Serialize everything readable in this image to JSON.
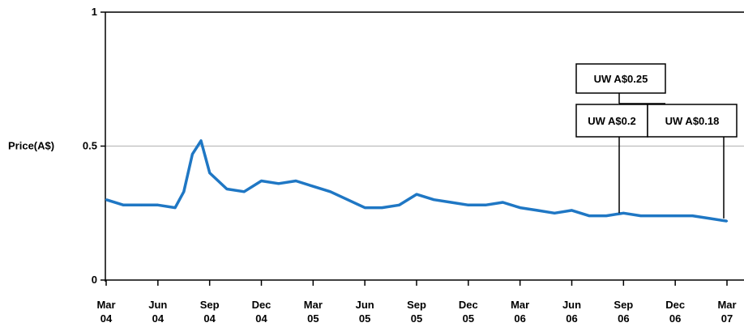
{
  "chart_data": {
    "type": "line",
    "ylabel": "Price(A$)",
    "ylim": [
      0,
      1
    ],
    "yticks": [
      0,
      0.5,
      1
    ],
    "ytick_labels": [
      "0",
      "0.5",
      "1"
    ],
    "xtick_labels": [
      {
        "m": "Mar",
        "y": "04"
      },
      {
        "m": "Jun",
        "y": "04"
      },
      {
        "m": "Sep",
        "y": "04"
      },
      {
        "m": "Dec",
        "y": "04"
      },
      {
        "m": "Mar",
        "y": "05"
      },
      {
        "m": "Jun",
        "y": "05"
      },
      {
        "m": "Sep",
        "y": "05"
      },
      {
        "m": "Dec",
        "y": "05"
      },
      {
        "m": "Mar",
        "y": "06"
      },
      {
        "m": "Jun",
        "y": "06"
      },
      {
        "m": "Sep",
        "y": "06"
      },
      {
        "m": "Dec",
        "y": "06"
      },
      {
        "m": "Mar",
        "y": "07"
      }
    ],
    "grid": {
      "y": true,
      "x": false
    },
    "line_color": "#1f77c4",
    "series": [
      {
        "x": [
          "Mar 04",
          "Apr 04",
          "May 04",
          "Jun 04",
          "Jul 04",
          "Jul 04",
          "Aug 04",
          "Aug 04",
          "Sep 04",
          "Oct 04",
          "Nov 04",
          "Dec 04",
          "Jan 05",
          "Feb 05",
          "Mar 05",
          "Apr 05",
          "May 05",
          "Jun 05",
          "Jul 05",
          "Aug 05",
          "Sep 05",
          "Oct 05",
          "Nov 05",
          "Dec 05",
          "Jan 06",
          "Feb 06",
          "Mar 06",
          "Apr 06",
          "May 06",
          "Jun 06",
          "Jul 06",
          "Aug 06",
          "Sep 06",
          "Oct 06",
          "Nov 06",
          "Dec 06",
          "Jan 07",
          "Feb 07",
          "Mar 07"
        ],
        "values": [
          0.3,
          0.28,
          0.28,
          0.28,
          0.27,
          0.33,
          0.47,
          0.52,
          0.4,
          0.34,
          0.33,
          0.37,
          0.36,
          0.37,
          0.35,
          0.33,
          0.3,
          0.27,
          0.27,
          0.28,
          0.32,
          0.3,
          0.29,
          0.28,
          0.28,
          0.29,
          0.27,
          0.26,
          0.25,
          0.26,
          0.24,
          0.24,
          0.25,
          0.24,
          0.24,
          0.24,
          0.24,
          0.23,
          0.22
        ]
      }
    ],
    "annotations": [
      {
        "label": "UW A$0.25",
        "x": "Aug 06",
        "value": 0.25
      },
      {
        "label": "UW A$0.2",
        "x": "Aug 06",
        "value": 0.25
      },
      {
        "label": "UW A$0.18",
        "x": "Feb 07",
        "value": 0.23
      }
    ]
  }
}
